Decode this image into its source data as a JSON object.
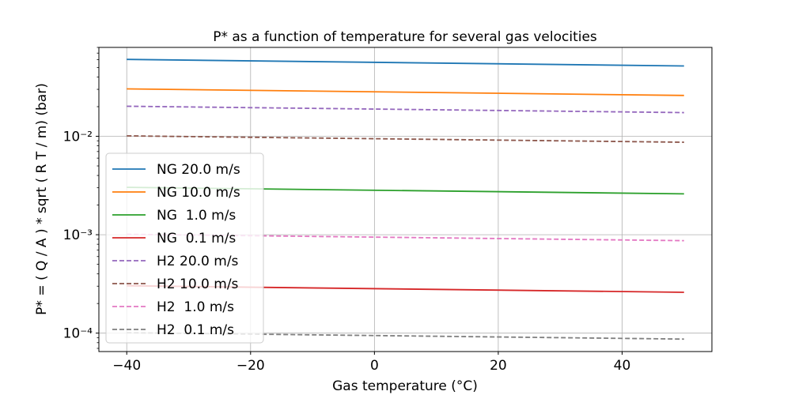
{
  "chart_data": {
    "type": "line",
    "title": "P* as a function of temperature for several gas velocities",
    "xlabel": "Gas temperature (°C)",
    "ylabel": "P* = ( Q / A ) * sqrt ( R T / m) (bar)",
    "xscale": "linear",
    "yscale": "log",
    "xlim": [
      -44.5,
      54.5
    ],
    "ylim": [
      6.5e-05,
      0.08
    ],
    "xticks": [
      -40,
      -20,
      0,
      20,
      40
    ],
    "xtick_labels": [
      "−40",
      "−20",
      "0",
      "20",
      "40"
    ],
    "yticks": [
      0.0001,
      0.001,
      0.01
    ],
    "ytick_labels": [
      "10⁻⁴",
      "10⁻³",
      "10⁻²"
    ],
    "grid": true,
    "legend_position": "center-left",
    "x": [
      -40,
      50
    ],
    "series": [
      {
        "name": "NG 20.0 m/s",
        "color": "#1f77b4",
        "dash": "solid",
        "values": [
          0.0604,
          0.0518
        ]
      },
      {
        "name": "NG 10.0 m/s",
        "color": "#ff7f0e",
        "dash": "solid",
        "values": [
          0.0303,
          0.026
        ]
      },
      {
        "name": "NG  1.0 m/s",
        "color": "#2ca02c",
        "dash": "solid",
        "values": [
          0.00303,
          0.0026
        ]
      },
      {
        "name": "NG  0.1 m/s",
        "color": "#d62728",
        "dash": "solid",
        "values": [
          0.000303,
          0.00026
        ]
      },
      {
        "name": "H2 20.0 m/s",
        "color": "#9467bd",
        "dash": "dashed",
        "values": [
          0.0202,
          0.0174
        ]
      },
      {
        "name": "H2 10.0 m/s",
        "color": "#8c564b",
        "dash": "dashed",
        "values": [
          0.0101,
          0.0087
        ]
      },
      {
        "name": "H2  1.0 m/s",
        "color": "#e377c2",
        "dash": "dashed",
        "values": [
          0.00101,
          0.00087
        ]
      },
      {
        "name": "H2  0.1 m/s",
        "color": "#7f7f7f",
        "dash": "dashed",
        "values": [
          0.000101,
          8.7e-05
        ]
      }
    ]
  }
}
